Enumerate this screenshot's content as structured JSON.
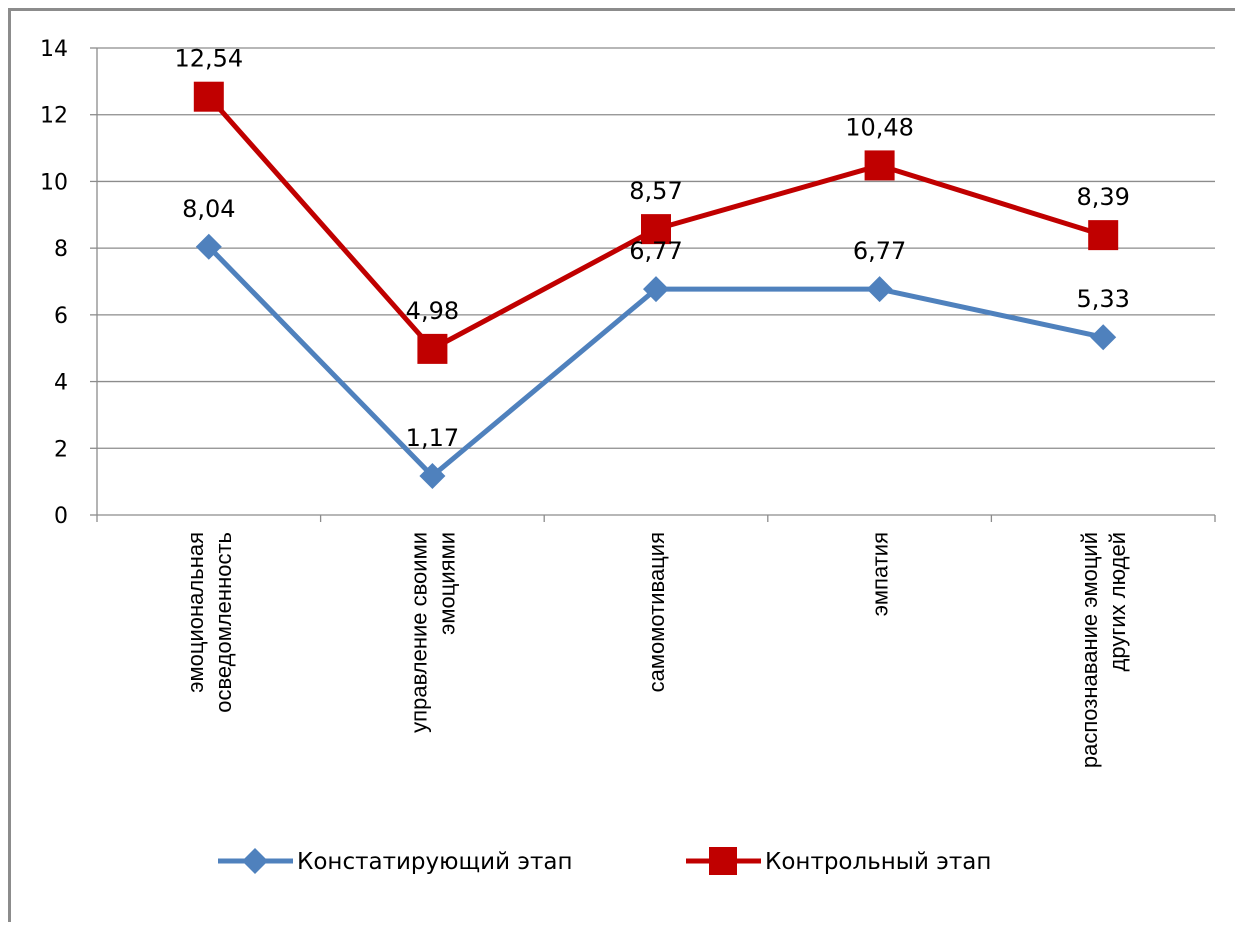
{
  "chart_data": {
    "type": "line",
    "title": "",
    "xlabel": "",
    "ylabel": "",
    "ylim": [
      0,
      14
    ],
    "yticks": [
      0,
      2,
      4,
      6,
      8,
      10,
      12,
      14
    ],
    "ytick_labels": [
      "0",
      "2",
      "4",
      "6",
      "8",
      "10",
      "12",
      "14"
    ],
    "grid": "horizontal",
    "legend_position": "bottom",
    "categories": [
      [
        "эмоциональная",
        "осведомленность"
      ],
      [
        "управление своими",
        "эмоциями"
      ],
      [
        "самомотивация"
      ],
      [
        "эмпатия"
      ],
      [
        "распознавание эмоций",
        "других людей"
      ]
    ],
    "series": [
      {
        "name": "Констатирующий этап",
        "values": [
          8.04,
          1.17,
          6.77,
          6.77,
          5.33
        ],
        "labels": [
          "8,04",
          "1,17",
          "6,77",
          "6,77",
          "5,33"
        ],
        "color": "#4f81bd",
        "marker": "diamond"
      },
      {
        "name": "Контрольный этап",
        "values": [
          12.54,
          4.98,
          8.57,
          10.48,
          8.39
        ],
        "labels": [
          "12,54",
          "4,98",
          "8,57",
          "10,48",
          "8,39"
        ],
        "color": "#c00000",
        "marker": "square"
      }
    ]
  }
}
